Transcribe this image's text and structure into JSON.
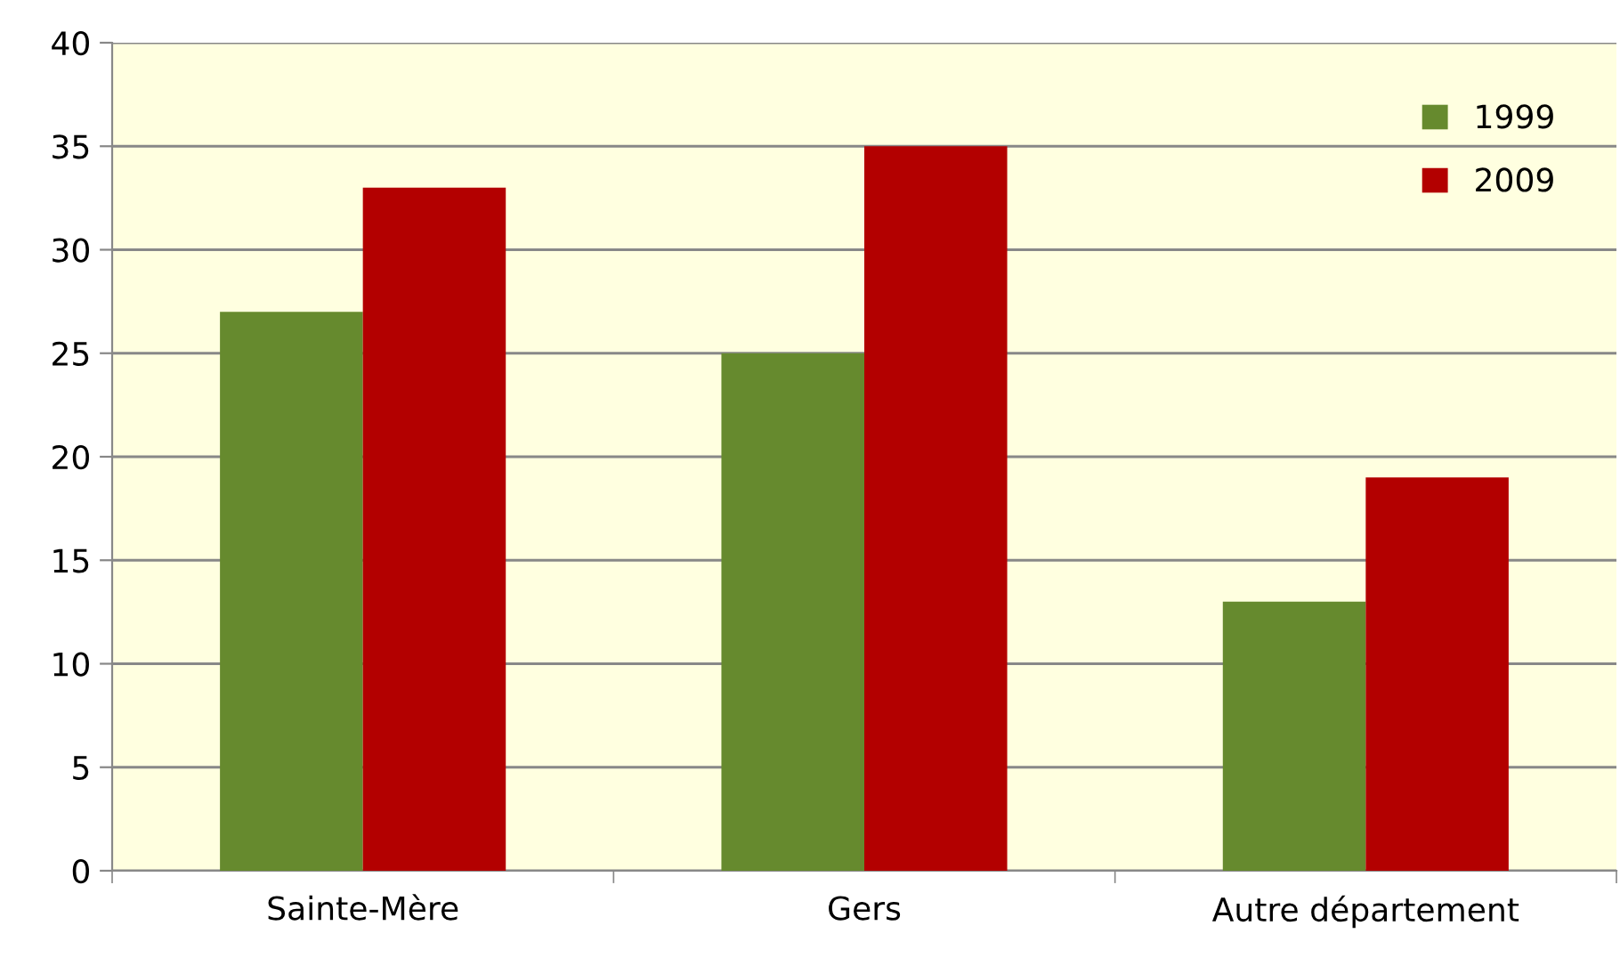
{
  "chart_data": {
    "type": "bar",
    "categories": [
      "Sainte-Mère",
      "Gers",
      "Autre département"
    ],
    "series": [
      {
        "name": "1999",
        "color": "#668a2e",
        "values": [
          27,
          25,
          13
        ]
      },
      {
        "name": "2009",
        "color": "#b30000",
        "values": [
          33,
          35,
          19
        ]
      }
    ],
    "ylim": [
      0,
      40
    ],
    "yticks": [
      0,
      5,
      10,
      15,
      20,
      25,
      30,
      35,
      40
    ],
    "grid": "y",
    "legend": "top right"
  }
}
